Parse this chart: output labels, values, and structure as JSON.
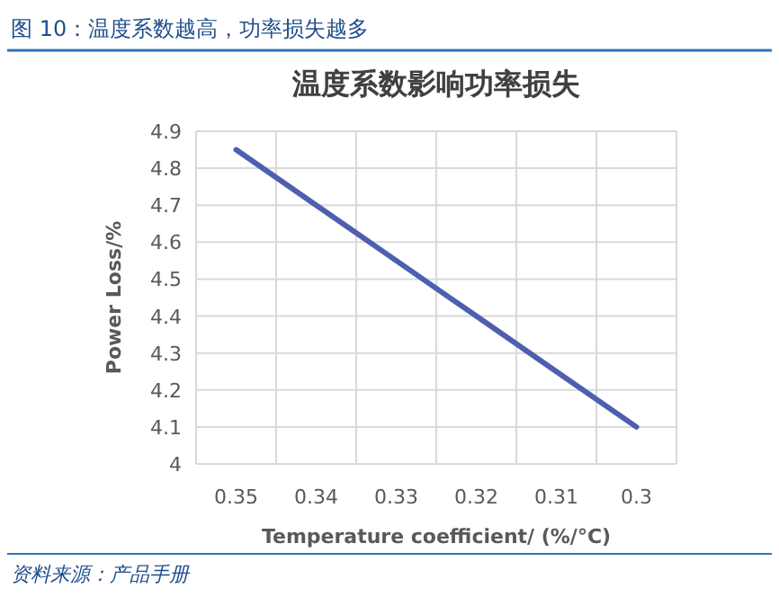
{
  "chart_data": {
    "type": "line",
    "title": "图 10：温度系数越高，功率损失越多",
    "subtitle": "温度系数影响功率损失",
    "xlabel": "Temperature coefficient/  (%/°C)",
    "ylabel": "Power Loss/%",
    "categories": [
      "0.35",
      "0.34",
      "0.33",
      "0.32",
      "0.31",
      "0.3"
    ],
    "series": [
      {
        "color": "#4e5fb0",
        "values": [
          4.85,
          4.7,
          4.55,
          4.4,
          4.25,
          4.1
        ]
      }
    ],
    "ylim": [
      4,
      4.9
    ],
    "yticks": [
      4,
      4.1,
      4.2,
      4.3,
      4.4,
      4.5,
      4.6,
      4.7,
      4.8,
      4.9
    ],
    "grid": true,
    "marker": "none",
    "line_style": "solid",
    "annotations": [
      "资料来源：产品手册"
    ]
  }
}
